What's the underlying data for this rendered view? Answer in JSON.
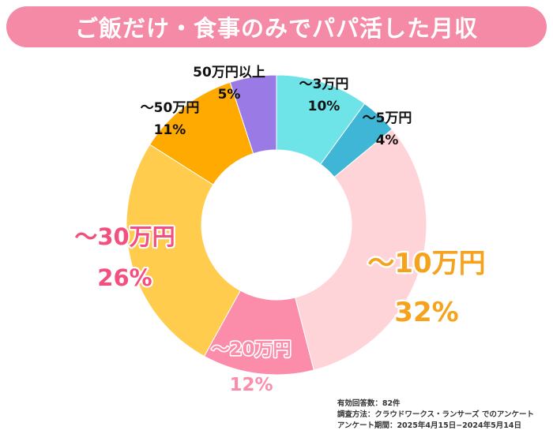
{
  "title": "ご飯だけ・食事のみでパパ活した月収",
  "colors": {
    "title_bg": "#f48aa6",
    "title_text": "#ffffff"
  },
  "chart_data": {
    "type": "pie",
    "donut": true,
    "title": "ご飯だけ・食事のみでパパ活した月収",
    "slices": [
      {
        "name": "～3万円",
        "value": 10,
        "label": "10%",
        "color": "#6ee3e8",
        "text_color": "#111111"
      },
      {
        "name": "～5万円",
        "value": 4,
        "label": "4%",
        "color": "#3fb6d6",
        "text_color": "#111111"
      },
      {
        "name": "～10万円",
        "value": 32,
        "label": "32%",
        "color": "#ffd4d8",
        "text_color": "#f5a21c"
      },
      {
        "name": "～20万円",
        "value": 12,
        "label": "12%",
        "color": "#fb8dab",
        "text_color": "#fb8dab"
      },
      {
        "name": "～30万円",
        "value": 26,
        "label": "26%",
        "color": "#ffcc4d",
        "text_color": "#f4507f"
      },
      {
        "name": "～50万円",
        "value": 11,
        "label": "11%",
        "color": "#ffaa00",
        "text_color": "#111111"
      },
      {
        "name": "50万円以上",
        "value": 5,
        "label": "5%",
        "color": "#9a7be6",
        "text_color": "#111111"
      }
    ]
  },
  "footnote": {
    "respondents": "有効回答数：82件",
    "method": "調査方法：クラウドワークス・ランサーズ でのアンケート",
    "period": "アンケート期間：2025年4月15日−2024年5月14日"
  }
}
